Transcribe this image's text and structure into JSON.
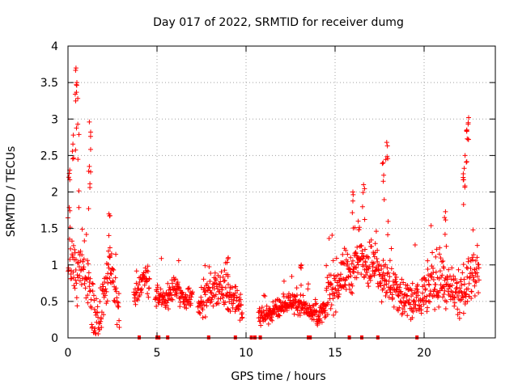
{
  "chart_data": {
    "type": "scatter",
    "title": "Day 017 of 2022, SRMTID for receiver dumg",
    "xlabel": "GPS time / hours",
    "ylabel": "SRMTID / TECUs",
    "xlim": [
      0,
      24
    ],
    "ylim": [
      0,
      4
    ],
    "xticks": [
      0,
      5,
      10,
      15,
      20
    ],
    "yticks": [
      0,
      0.5,
      1,
      1.5,
      2,
      2.5,
      3,
      3.5,
      4
    ],
    "ytick_labels": [
      "0",
      "0.5",
      "1",
      "1.5",
      "2",
      "2.5",
      "3",
      "3.5",
      "4"
    ],
    "grid": true,
    "marker": "+",
    "color": "#ff0000",
    "zero_flags_x": [
      4.0,
      5.0,
      5.1,
      5.6,
      7.9,
      9.4,
      10.3,
      10.5,
      10.8,
      13.5,
      13.6,
      15.8,
      16.5,
      17.4,
      19.6
    ],
    "series": [
      {
        "name": "SRMTID",
        "segments": [
          {
            "start": 0.0,
            "end": 2.9,
            "dt": 0.017,
            "base": [
              [
                0.0,
                0.9
              ],
              [
                0.2,
                1.1
              ],
              [
                0.5,
                0.8
              ],
              [
                0.8,
                1.0
              ],
              [
                1.1,
                0.8
              ],
              [
                1.5,
                0.3
              ],
              [
                1.8,
                0.2
              ],
              [
                2.1,
                0.7
              ],
              [
                2.4,
                1.0
              ],
              [
                2.7,
                0.6
              ],
              [
                2.9,
                0.4
              ]
            ],
            "spread": 0.35
          },
          {
            "start": 3.7,
            "end": 4.6,
            "dt": 0.017,
            "base": [
              [
                3.7,
                0.6
              ],
              [
                4.0,
                0.7
              ],
              [
                4.3,
                0.8
              ],
              [
                4.6,
                0.8
              ]
            ],
            "spread": 0.18
          },
          {
            "start": 4.9,
            "end": 7.0,
            "dt": 0.017,
            "base": [
              [
                4.9,
                0.6
              ],
              [
                5.5,
                0.5
              ],
              [
                6.0,
                0.7
              ],
              [
                6.5,
                0.5
              ],
              [
                7.0,
                0.6
              ]
            ],
            "spread": 0.16
          },
          {
            "start": 7.3,
            "end": 9.8,
            "dt": 0.017,
            "base": [
              [
                7.3,
                0.5
              ],
              [
                8.0,
                0.6
              ],
              [
                8.5,
                0.7
              ],
              [
                9.0,
                0.6
              ],
              [
                9.5,
                0.5
              ],
              [
                9.8,
                0.3
              ]
            ],
            "spread": 0.2
          },
          {
            "start": 10.7,
            "end": 14.5,
            "dt": 0.015,
            "base": [
              [
                10.7,
                0.3
              ],
              [
                11.5,
                0.35
              ],
              [
                12.5,
                0.5
              ],
              [
                13.5,
                0.4
              ],
              [
                14.0,
                0.3
              ],
              [
                14.5,
                0.4
              ]
            ],
            "spread": 0.12
          },
          {
            "start": 14.5,
            "end": 19.6,
            "dt": 0.016,
            "base": [
              [
                14.5,
                0.6
              ],
              [
                15.0,
                0.7
              ],
              [
                15.5,
                0.9
              ],
              [
                16.0,
                0.9
              ],
              [
                16.5,
                1.1
              ],
              [
                17.0,
                1.0
              ],
              [
                17.5,
                0.9
              ],
              [
                18.0,
                0.8
              ],
              [
                18.5,
                0.6
              ],
              [
                19.0,
                0.5
              ],
              [
                19.6,
                0.5
              ]
            ],
            "spread": 0.3
          },
          {
            "start": 19.6,
            "end": 23.1,
            "dt": 0.016,
            "base": [
              [
                19.6,
                0.5
              ],
              [
                20.3,
                0.7
              ],
              [
                21.0,
                0.8
              ],
              [
                21.5,
                0.6
              ],
              [
                22.0,
                0.5
              ],
              [
                22.5,
                0.8
              ],
              [
                23.1,
                0.9
              ]
            ],
            "spread": 0.3
          }
        ],
        "peaks": [
          {
            "x": 0.45,
            "y": 3.7
          },
          {
            "x": 0.5,
            "y": 3.5
          },
          {
            "x": 0.55,
            "y": 2.93
          },
          {
            "x": 0.3,
            "y": 2.78
          },
          {
            "x": 1.2,
            "y": 2.96
          },
          {
            "x": 0.1,
            "y": 2.3
          },
          {
            "x": 1.2,
            "y": 2.35
          },
          {
            "x": 2.3,
            "y": 1.7
          },
          {
            "x": 9.0,
            "y": 1.1
          },
          {
            "x": 13.1,
            "y": 1.0
          },
          {
            "x": 16.0,
            "y": 2.0
          },
          {
            "x": 16.6,
            "y": 2.1
          },
          {
            "x": 17.9,
            "y": 2.68
          },
          {
            "x": 17.7,
            "y": 2.4
          },
          {
            "x": 21.2,
            "y": 1.73
          },
          {
            "x": 22.5,
            "y": 3.02
          },
          {
            "x": 22.4,
            "y": 2.85
          },
          {
            "x": 22.3,
            "y": 2.5
          },
          {
            "x": 22.2,
            "y": 2.25
          },
          {
            "x": 16.3,
            "y": 1.6
          }
        ]
      }
    ]
  }
}
